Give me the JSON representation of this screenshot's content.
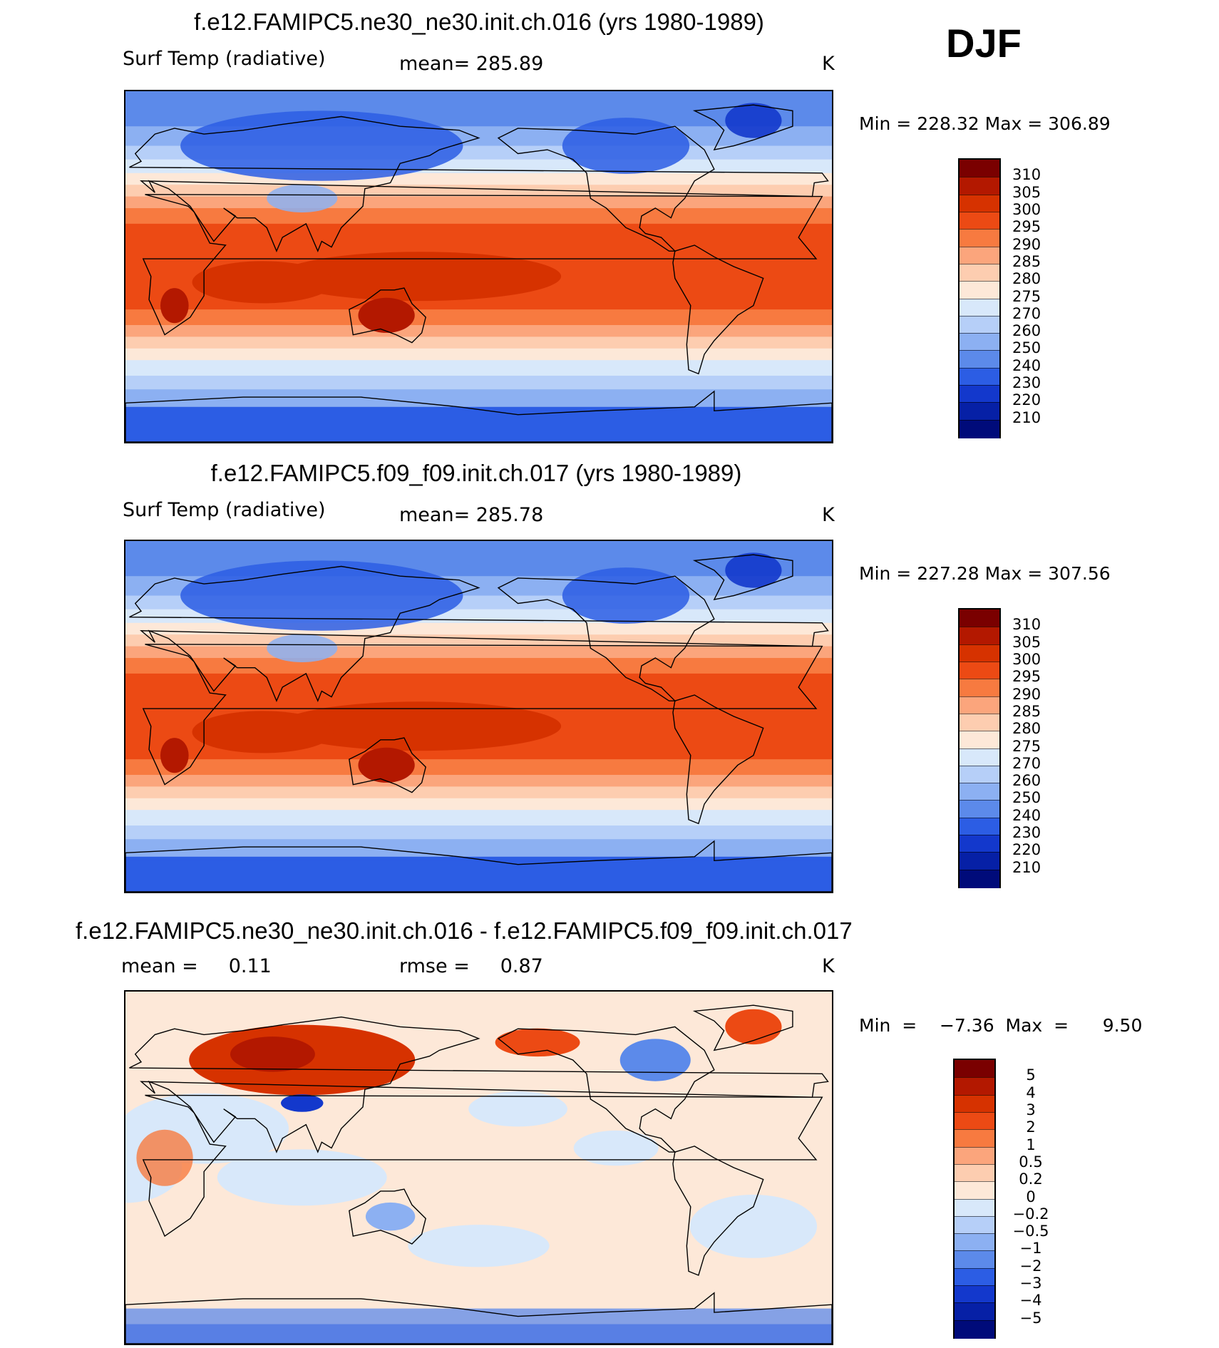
{
  "season": "DJF",
  "panels": [
    {
      "title": "f.e12.FAMIPC5.ne30_ne30.init.ch.016 (yrs 1980-1989)",
      "variable": "Surf Temp (radiative)",
      "mean_text": "mean= 285.89",
      "units": "K",
      "minmax_text": "Min  =  228.32  Max  =  306.89",
      "map_type": "absolute"
    },
    {
      "title": "f.e12.FAMIPC5.f09_f09.init.ch.017 (yrs 1980-1989)",
      "variable": "Surf Temp (radiative)",
      "mean_text": "mean= 285.78",
      "units": "K",
      "minmax_text": "Min  =  227.28  Max  =  307.56",
      "map_type": "absolute"
    },
    {
      "title": "f.e12.FAMIPC5.ne30_ne30.init.ch.016 - f.e12.FAMIPC5.f09_f09.init.ch.017",
      "variable": "mean =     0.11",
      "mean_text": "rmse =     0.87",
      "units": "K",
      "minmax_text": "Min  =    −7.36  Max  =      9.50",
      "map_type": "difference"
    }
  ],
  "colorbar_abs": {
    "labels": [
      "310",
      "305",
      "300",
      "295",
      "290",
      "285",
      "280",
      "275",
      "270",
      "260",
      "250",
      "240",
      "230",
      "220",
      "210"
    ],
    "colors": [
      "#7a0000",
      "#b31800",
      "#d63200",
      "#ec4a14",
      "#f77a40",
      "#fba57c",
      "#fdcdb0",
      "#fde8d8",
      "#d8e8fa",
      "#b6cff8",
      "#8cb0f2",
      "#5c8aea",
      "#2c5de4",
      "#1338cc",
      "#0620a6",
      "#000b7a"
    ]
  },
  "colorbar_diff": {
    "labels": [
      "5",
      "4",
      "3",
      "2",
      "1",
      "0.5",
      "0.2",
      "0",
      "−0.2",
      "−0.5",
      "−1",
      "−2",
      "−3",
      "−4",
      "−5"
    ],
    "colors": [
      "#7a0000",
      "#b31800",
      "#d63200",
      "#ec4a14",
      "#f77a40",
      "#fba57c",
      "#fdcdb0",
      "#fde8d8",
      "#d8e8fa",
      "#b6cff8",
      "#8cb0f2",
      "#5c8aea",
      "#2c5de4",
      "#1338cc",
      "#0620a6",
      "#000b7a"
    ]
  }
}
